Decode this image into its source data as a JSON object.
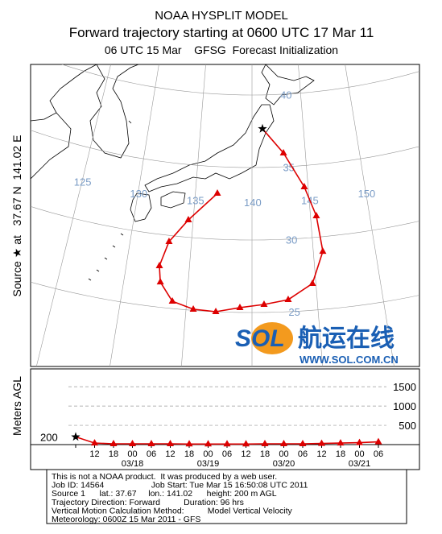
{
  "header": {
    "title": "NOAA HYSPLIT MODEL",
    "subtitle": "Forward trajectory starting at 0600 UTC 17 Mar 11",
    "subtitle2": "06 UTC 15 Mar    GFSG  Forecast Initialization"
  },
  "map": {
    "side_label": "Source ★ at   37.67 N  141.02 E",
    "lat_lines": [
      40,
      35,
      30,
      25
    ],
    "lon_lines": [
      125,
      130,
      135,
      140,
      145,
      150
    ],
    "trajectory": {
      "color": "#dd0000",
      "lon": [
        141.02,
        142.95,
        144.66,
        145.5,
        145.77,
        144.73,
        142.78,
        140.92,
        139.08,
        137.26,
        135.55,
        133.91,
        132.83,
        132.61,
        133.16,
        134.59,
        136.94
      ],
      "lat": [
        37.67,
        35.95,
        33.53,
        31.47,
        28.99,
        26.84,
        25.83,
        25.55,
        25.33,
        25.0,
        25.08,
        25.51,
        26.74,
        27.84,
        29.57,
        31.2,
        33.16
      ]
    }
  },
  "logo": {
    "brand": "SOL",
    "name": "航运在线",
    "url": "WWW.SOL.COM.CN"
  },
  "chart_data": {
    "type": "line",
    "y_label": "Meters AGL",
    "categories": [
      null,
      "12",
      "18",
      "00",
      "06",
      "12",
      "18",
      "00",
      "06",
      "12",
      "18",
      "00",
      "06",
      "12",
      "18",
      "00",
      "06"
    ],
    "dates": [
      null,
      null,
      null,
      "03/18",
      null,
      null,
      null,
      "03/19",
      null,
      null,
      null,
      "03/20",
      null,
      null,
      null,
      "03/21",
      null
    ],
    "series": [
      {
        "color": "#dd0000",
        "values": [
          200,
          40,
          20,
          20,
          20,
          20,
          15,
          15,
          15,
          15,
          20,
          20,
          20,
          30,
          40,
          50,
          70
        ]
      }
    ],
    "ylim": [
      0,
      1900
    ],
    "yticks": [
      500,
      1000,
      1500
    ],
    "grid": true
  },
  "footer": {
    "lines": [
      "This is not a NOAA product.  It was produced by a web user.",
      "Job ID: 14564                    Job Start: Tue Mar 15 16:50:08 UTC 2011",
      "Source 1      lat.: 37.67     lon.: 141.02      height: 200 m AGL",
      "Trajectory Direction: Forward          Duration: 96 hrs",
      "Vertical Motion Calculation Method:          Model Vertical Velocity",
      "Meteorology: 0600Z 15 Mar 2011 - GFS"
    ]
  }
}
